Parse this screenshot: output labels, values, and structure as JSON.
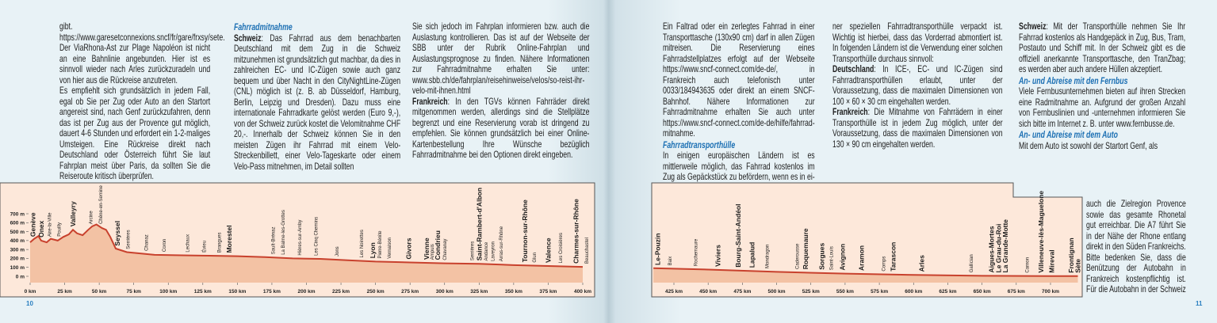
{
  "left_page": {
    "page_number": "10",
    "columns": [
      [
        {
          "text": "gibt. https://www.garesetconnexions.sncf/fr/gare/frxsy/sete."
        },
        {
          "text": "Der ViaRhona-Ast zur Plage Napoléon ist nicht an eine Bahnlinie angebunden. Hier ist es sinnvoll wieder nach Arles zurückzuradeln und von hier aus die Rückreise anzutreten."
        },
        {
          "text": "Es empfiehlt sich grundsätzlich in jedem Fall, egal ob Sie per Zug oder Auto an den Startort angereist sind, nach Genf zurückzufahren, denn das ist per Zug aus der Provence gut möglich, dauert 4-6 Stunden und erfordert ein 1-2-maliges Umsteigen. Eine Rückreise direkt nach Deutschland oder Österreich führt Sie laut Fahrplan meist über Paris, da sollten Sie die Reiseroute kritisch überprüfen."
        }
      ],
      [
        {
          "heading": "Fahrradmitnahme"
        },
        {
          "lead": "Schweiz",
          "text": ": Das Fahrrad aus dem benachbarten Deutschland mit dem Zug in die Schweiz mitzunehmen ist grundsätzlich gut machbar, da dies in zahlreichen EC- und IC-Zügen sowie auch ganz bequem und über Nacht in den CityNightLine-Zügen (CNL) möglich ist (z. B. ab Düsseldorf, Hamburg, Berlin, Leipzig und Dresden). Dazu muss eine internationale Fahrradkarte gelöst werden (Euro 9,-), von der Schweiz zurück kostet die Velomitnahme CHF 20,-. Innerhalb der Schweiz können Sie in den meisten Zügen ihr Fahrrad mit einem Velo-Streckenbillett, einer Velo-Tageskarte oder einem Velo-Pass mitnehmen, im Detail sollten"
        }
      ],
      [
        {
          "text": "Sie sich jedoch im Fahrplan informieren bzw. auch die Auslastung kontrollieren. Das ist auf der Webseite der SBB unter der Rubrik Online-Fahrplan und Auslastungsprognose zu finden. Nähere Informationen zur Fahrradmitnahme erhalten Sie unter: www.sbb.ch/de/fahrplan/reisehinweise/velos/so-reist-ihr-velo-mit-ihnen.html"
        },
        {
          "lead": "Frankreich",
          "text": ": In den TGVs können Fahrräder direkt mitgenommen werden, allerdings sind die Stellplätze begrenzt und eine Reservierung vorab ist dringend zu empfehlen. Sie können grundsätzlich bei einer Online-Kartenbestellung Ihre Wünsche bezüglich Fahrradmitnahme bei den Optionen direkt eingeben."
        }
      ]
    ]
  },
  "right_page": {
    "page_number": "11",
    "columns": [
      [
        {
          "text": "Ein Faltrad oder ein zerlegtes Fahrrad in einer Transporttasche (130x90 cm) darf in allen Zügen mitreisen. Die Reservierung eines Fahrradstellplatzes erfolgt auf der Webseite https://www.sncf-connect.com/de-de/, in Frankreich auch telefonisch unter 0033/184943635 oder direkt an einem SNCF-Bahnhof. Nähere Informationen zur Fahrradmitnahme erhalten Sie auch unter https://www.sncf-connect.com/de-de/hilfe/fahrrad-mitnahme."
        },
        {
          "heading": "Fahrradtransporthülle"
        },
        {
          "text": "In einigen europäischen Ländern ist es mittlerweile möglich, das Fahrrad kostenlos im Zug als Gepäckstück zu befördern, wenn es in ei-"
        }
      ],
      [
        {
          "text": "ner speziellen Fahrradtransporthülle verpackt ist. Wichtig ist hierbei, dass das Vorderrad abmontiert ist. In folgenden Ländern ist die Verwendung einer solchen Transporthülle durchaus sinnvoll:"
        },
        {
          "lead": "Deutschland",
          "text": ": In ICE-, EC- und IC-Zügen sind Fahrradtransporthüllen erlaubt, unter der Voraussetzung, dass die maximalen Dimensionen von 100 × 60 × 30 cm eingehalten werden."
        },
        {
          "lead": "Frankreich",
          "text": ": Die Mitnahme von Fahrrädern in einer Transporthülle ist in jedem Zug möglich, unter der Voraussetzung, dass die maximalen Dimensionen von 130 × 90 cm eingehalten werden."
        }
      ],
      [
        {
          "lead": "Schweiz",
          "text": ": Mit der Transporthülle nehmen Sie Ihr Fahrrad kostenlos als Handgepäck in Zug, Bus, Tram, Postauto und Schiff mit. In der Schweiz gibt es die offiziell anerkannte Transporttasche, den TranZbag; es werden aber auch andere Hüllen akzeptiert."
        },
        {
          "heading": "An- und Abreise mit den Fernbus"
        },
        {
          "text": "Viele Fernbusunternehmen bieten auf ihren Strecken eine Radmitnahme an. Aufgrund der großen Anzahl von Fernbuslinien und -unternehmen informieren Sie sich bitte im Internet z. B. unter www.fernbusse.de."
        },
        {
          "heading": "An- und Abreise mit dem Auto"
        },
        {
          "text": "Mit dem Auto ist sowohl der Startort Genf, als"
        }
      ]
    ],
    "beside_chart": "auch die Zielregion Provence sowie das gesamte Rhonetal gut erreichbar. Die A7 führt Sie in der Nähe der Rhone entlang direkt in den Süden Frankreichs. Bitte bedenken Sie, dass die Benützung der Autobahn in Frankreich kostenpflichtig ist. Für die Autobahn in der Schweiz"
  },
  "chart_data": [
    {
      "type": "area",
      "color": "#c8412d",
      "fill": "#f3c2a4",
      "x": [
        0,
        3,
        6,
        8,
        12,
        15,
        20,
        24,
        28,
        31,
        34,
        38,
        42,
        45,
        48,
        52,
        55,
        58,
        62,
        70,
        90,
        110,
        130,
        150,
        170,
        190,
        210,
        230,
        250,
        275,
        300,
        325,
        350,
        375,
        400
      ],
      "values": [
        380,
        420,
        450,
        400,
        380,
        420,
        400,
        440,
        470,
        520,
        480,
        460,
        520,
        560,
        580,
        540,
        520,
        440,
        310,
        270,
        240,
        235,
        230,
        225,
        215,
        200,
        195,
        180,
        165,
        155,
        145,
        140,
        125,
        115,
        105
      ],
      "xlim": [
        0,
        400
      ],
      "ylim": [
        0,
        700
      ],
      "xticks": [
        {
          "value": 0,
          "label": "0 km"
        },
        {
          "value": 25,
          "label": "25 km"
        },
        {
          "value": 50,
          "label": "50 km"
        },
        {
          "value": 75,
          "label": "75 km"
        },
        {
          "value": 100,
          "label": "100 km"
        },
        {
          "value": 125,
          "label": "125 km"
        },
        {
          "value": 150,
          "label": "150 km"
        },
        {
          "value": 175,
          "label": "175 km"
        },
        {
          "value": 200,
          "label": "200 km"
        },
        {
          "value": 225,
          "label": "225 km"
        },
        {
          "value": 250,
          "label": "250 km"
        },
        {
          "value": 275,
          "label": "275 km"
        },
        {
          "value": 300,
          "label": "300 km"
        },
        {
          "value": 325,
          "label": "325 km"
        },
        {
          "value": 350,
          "label": "350 km"
        },
        {
          "value": 375,
          "label": "375 km"
        },
        {
          "value": 400,
          "label": "400 km"
        }
      ],
      "yticks": [
        {
          "value": 0,
          "label": "0 m"
        },
        {
          "value": 100,
          "label": "100 m"
        },
        {
          "value": 200,
          "label": "200 m"
        },
        {
          "value": 300,
          "label": "300 m"
        },
        {
          "value": 400,
          "label": "400 m"
        },
        {
          "value": 500,
          "label": "500 m"
        },
        {
          "value": 600,
          "label": "600 m"
        },
        {
          "value": 700,
          "label": "700 m"
        }
      ],
      "stations": [
        {
          "name": "Genève",
          "km": 2,
          "bold": true
        },
        {
          "name": "Onex",
          "km": 8,
          "bold": true
        },
        {
          "name": "Aire-la-Ville",
          "km": 14
        },
        {
          "name": "Pouilly",
          "km": 21
        },
        {
          "name": "Valleyry",
          "km": 31,
          "bold": true
        },
        {
          "name": "Arcine",
          "km": 44
        },
        {
          "name": "Chêne-en-Semine",
          "km": 51
        },
        {
          "name": "Seyssel",
          "km": 63,
          "bold": true
        },
        {
          "name": "Serrières",
          "km": 71
        },
        {
          "name": "Chanaz",
          "km": 84
        },
        {
          "name": "Coron",
          "km": 97
        },
        {
          "name": "Lechaux",
          "km": 114
        },
        {
          "name": "Évieu",
          "km": 126
        },
        {
          "name": "Brangues",
          "km": 137
        },
        {
          "name": "Morestel",
          "km": 144,
          "bold": true
        },
        {
          "name": "Sault-Brénaz",
          "km": 176
        },
        {
          "name": "La Balme-les-Grottes",
          "km": 183
        },
        {
          "name": "Hières-sur-Amby",
          "km": 195
        },
        {
          "name": "Les Cinq Chemins",
          "km": 207
        },
        {
          "name": "Jons",
          "km": 222
        },
        {
          "name": "Les Noirettes",
          "km": 240
        },
        {
          "name": "Lyon",
          "km": 248,
          "bold": true
        },
        {
          "name": "Pierre-Bénite",
          "km": 253
        },
        {
          "name": "Vernaison",
          "km": 260
        },
        {
          "name": "Givors",
          "km": 274,
          "bold": true
        },
        {
          "name": "Vienne",
          "km": 287,
          "bold": true
        },
        {
          "name": "Ampuis",
          "km": 291
        },
        {
          "name": "Condrieu",
          "km": 295,
          "bold": true
        },
        {
          "name": "Chavanay",
          "km": 300
        },
        {
          "name": "Serrières",
          "km": 320
        },
        {
          "name": "Saint-Rambert-d'Albon",
          "km": 325,
          "bold": true
        },
        {
          "name": "Andance",
          "km": 330
        },
        {
          "name": "Laveyron",
          "km": 335
        },
        {
          "name": "Arras-sur-Rhône",
          "km": 341
        },
        {
          "name": "Tournon-sur-Rhône",
          "km": 358,
          "bold": true
        },
        {
          "name": "Glun",
          "km": 365
        },
        {
          "name": "Valence",
          "km": 375,
          "bold": true
        },
        {
          "name": "Les Croisières",
          "km": 384
        },
        {
          "name": "Charmes-sur-Rhône",
          "km": 395,
          "bold": true
        },
        {
          "name": "Beauchastel",
          "km": 403
        }
      ]
    },
    {
      "type": "area",
      "color": "#c8412d",
      "fill": "#f3c2a4",
      "x": [
        410,
        450,
        500,
        550,
        600,
        650,
        700,
        720
      ],
      "values": [
        90,
        75,
        50,
        30,
        15,
        5,
        3,
        2
      ],
      "xlim": [
        425,
        700
      ],
      "ylim": [
        0,
        700
      ],
      "xticks": [
        {
          "value": 425,
          "label": "425 km"
        },
        {
          "value": 450,
          "label": "450 km"
        },
        {
          "value": 475,
          "label": "475 km"
        },
        {
          "value": 500,
          "label": "500 km"
        },
        {
          "value": 525,
          "label": "525 km"
        },
        {
          "value": 550,
          "label": "550 km"
        },
        {
          "value": 575,
          "label": "575 km"
        },
        {
          "value": 600,
          "label": "600 km"
        },
        {
          "value": 625,
          "label": "625 km"
        },
        {
          "value": 650,
          "label": "650 km"
        },
        {
          "value": 675,
          "label": "675 km"
        },
        {
          "value": 700,
          "label": "700 km"
        }
      ],
      "stations": [
        {
          "name": "Le-Pouzin",
          "km": 413,
          "bold": true
        },
        {
          "name": "Baix",
          "km": 422
        },
        {
          "name": "Rochemaure",
          "km": 441
        },
        {
          "name": "Viviers",
          "km": 457,
          "bold": true
        },
        {
          "name": "Bourg-Saint-Andéol",
          "km": 472,
          "bold": true
        },
        {
          "name": "Lapalud",
          "km": 482,
          "bold": true
        },
        {
          "name": "Mondragon",
          "km": 493
        },
        {
          "name": "Caderousse",
          "km": 515
        },
        {
          "name": "Roquemaure",
          "km": 521,
          "bold": true
        },
        {
          "name": "Sorgues",
          "km": 533,
          "bold": true
        },
        {
          "name": "Saint-Louis",
          "km": 540
        },
        {
          "name": "Avignon",
          "km": 548,
          "bold": true
        },
        {
          "name": "Aramon",
          "km": 562,
          "bold": true
        },
        {
          "name": "Comps",
          "km": 578
        },
        {
          "name": "Tarascon",
          "km": 585,
          "bold": true
        },
        {
          "name": "Arles",
          "km": 606,
          "bold": true
        },
        {
          "name": "Gallician",
          "km": 642
        },
        {
          "name": "Aigues-Mortes",
          "km": 657,
          "bold": true
        },
        {
          "name": "Le Grau-du-Roi",
          "km": 662,
          "bold": true
        },
        {
          "name": "La Grande-Motte",
          "km": 667,
          "bold": true
        },
        {
          "name": "Carnon",
          "km": 683
        },
        {
          "name": "Villeneuve-lès-Maguelone",
          "km": 693,
          "bold": true
        },
        {
          "name": "Mireval",
          "km": 701,
          "bold": true
        },
        {
          "name": "Frontignan",
          "km": 715,
          "bold": true
        },
        {
          "name": "Sète",
          "km": 720,
          "bold": true
        }
      ]
    }
  ]
}
